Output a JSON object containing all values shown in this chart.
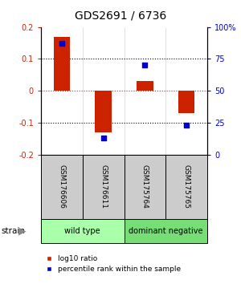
{
  "title": "GDS2691 / 6736",
  "samples": [
    "GSM176606",
    "GSM176611",
    "GSM175764",
    "GSM175765"
  ],
  "log10_ratio": [
    0.17,
    -0.13,
    0.03,
    -0.07
  ],
  "percentile_rank": [
    87,
    13,
    70,
    23
  ],
  "bar_color": "#cc2200",
  "dot_color": "#0000cc",
  "ylim_left": [
    -0.2,
    0.2
  ],
  "ylim_right": [
    0,
    100
  ],
  "yticks_left": [
    -0.2,
    -0.1,
    0,
    0.1,
    0.2
  ],
  "yticks_right": [
    0,
    25,
    50,
    75,
    100
  ],
  "ytick_labels_right": [
    "0",
    "25",
    "50",
    "75",
    "100%"
  ],
  "hlines_black": [
    0.1,
    -0.1
  ],
  "hline_red": 0.0,
  "groups": [
    {
      "label": "wild type",
      "indices": [
        0,
        1
      ],
      "color": "#aaffaa"
    },
    {
      "label": "dominant negative",
      "indices": [
        2,
        3
      ],
      "color": "#77dd77"
    }
  ],
  "strain_label": "strain",
  "legend_ratio_label": "log10 ratio",
  "legend_pct_label": "percentile rank within the sample",
  "background_color": "#ffffff",
  "sample_box_color": "#cccccc",
  "bar_width": 0.4
}
